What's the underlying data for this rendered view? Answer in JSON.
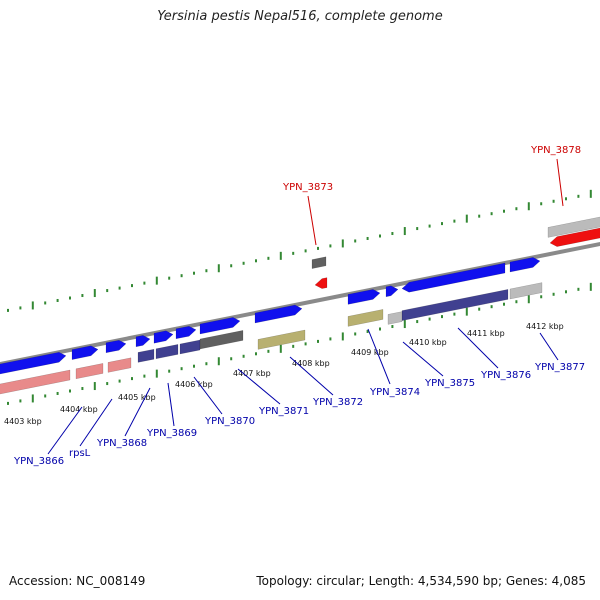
{
  "title": "Yersinia pestis Nepal516, complete genome",
  "footer": {
    "accession": "Accession: NC_008149",
    "summary": "Topology: circular; Length: 4,534,590 bp; Genes: 4,085"
  },
  "colors": {
    "forward_gene": "#1010ee",
    "reverse_gene": "#e88a8a",
    "highlight_gene": "#ee1010",
    "dark_cds": "#404090",
    "gray_feature": "#606060",
    "light_gray_feature": "#bbbbbb",
    "olive_feature": "#b8b070",
    "backbone": "#8a8a8a",
    "tick": "#338833",
    "label_blue": "#0000aa",
    "label_red": "#cc0000"
  },
  "ticks": [
    "4403 kbp",
    "4404 kbp",
    "4405 kbp",
    "4406 kbp",
    "4407 kbp",
    "4408 kbp",
    "4409 kbp",
    "4410 kbp",
    "4411 kbp",
    "4412 kbp"
  ],
  "genes_below": [
    "YPN_3866",
    "rpsL",
    "YPN_3868",
    "YPN_3869",
    "YPN_3870",
    "YPN_3871",
    "YPN_3872",
    "YPN_3874",
    "YPN_3875",
    "YPN_3876",
    "YPN_3877"
  ],
  "genes_above": [
    "YPN_3873",
    "YPN_3878"
  ]
}
